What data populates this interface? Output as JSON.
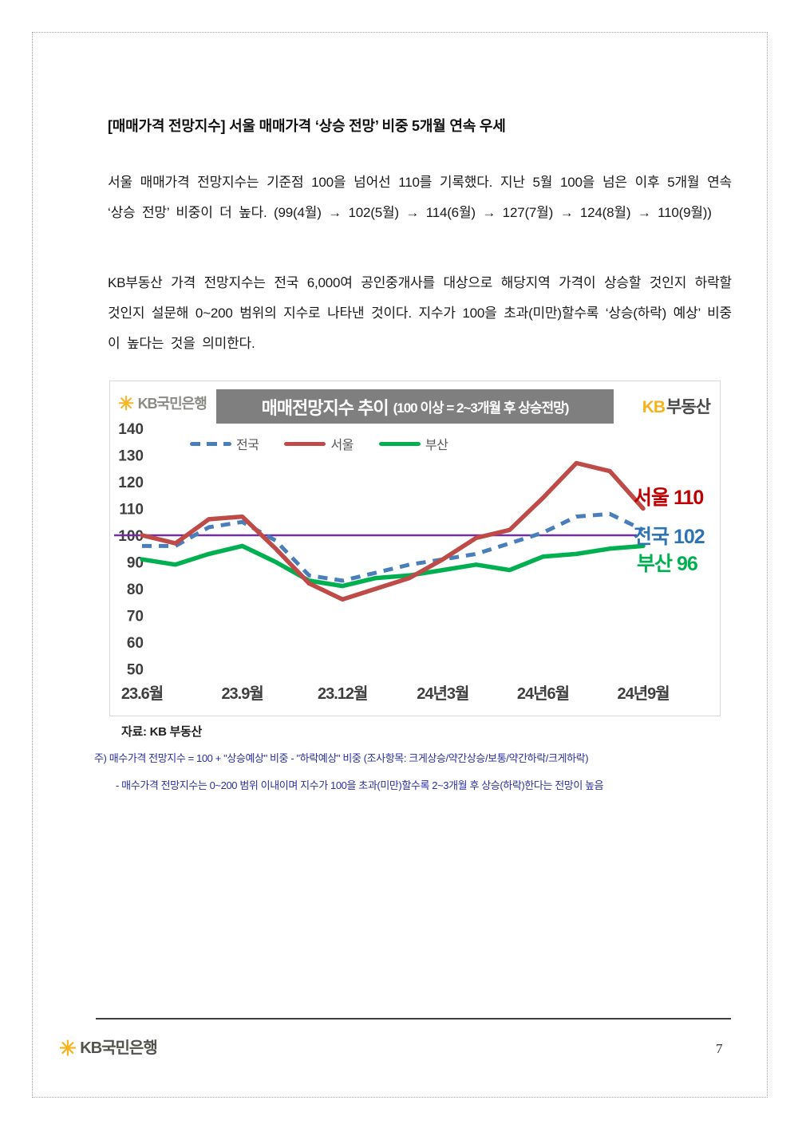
{
  "title": "[매매가격 전망지수] 서울 매매가격 ‘상승 전망’ 비중 5개월 연속 우세",
  "paragraphs": {
    "p1": "서울 매매가격 전망지수는 기준점 100을 넘어선 110를 기록했다. 지난 5월 100을 넘은 이후 5개월 연속 ‘상승 전망’ 비중이 더 높다. (99(4월) → 102(5월) → 114(6월) → 127(7월) → 124(8월) → 110(9월))",
    "p2": "KB부동산 가격 전망지수는 전국 6,000여 공인중개사를 대상으로 해당지역 가격이 상승할 것인지 하락할 것인지 설문해 0~200 범위의 지수로 나타낸 것이다. 지수가 100을 초과(미만)할수록 ‘상승(하락) 예상’ 비중이 높다는 것을 의미한다."
  },
  "chart": {
    "logo_left": {
      "symbol": "✳",
      "text": "KB국민은행"
    },
    "title_main": "매매전망지수 추이",
    "title_sub": "(100 이상 = 2~3개월 후 상승전망)",
    "brand_right": {
      "kb": "KB",
      "rest": "부동산"
    },
    "source": "자료: KB 부동산"
  },
  "chart_data": {
    "type": "line",
    "title": "매매전망지수 추이 (100 이상 = 2~3개월 후 상승전망)",
    "x_monthly": [
      "23.6",
      "23.7",
      "23.8",
      "23.9",
      "23.10",
      "23.11",
      "23.12",
      "24.1",
      "24.2",
      "24.3",
      "24.4",
      "24.5",
      "24.6",
      "24.7",
      "24.8",
      "24.9"
    ],
    "x_tick_labels": [
      "23.6월",
      "23.9월",
      "23.12월",
      "24년3월",
      "24년6월",
      "24년9월"
    ],
    "x_tick_indices": [
      0,
      3,
      6,
      9,
      12,
      15
    ],
    "ylim": [
      50,
      140
    ],
    "y_ticks": [
      140,
      130,
      120,
      110,
      100,
      90,
      80,
      70,
      60,
      50
    ],
    "baseline_value": 100,
    "baseline_color": "#7030a0",
    "grid": false,
    "legend_position": "top",
    "series": [
      {
        "id": "nationwide",
        "name": "전국",
        "color": "#4a7ebb",
        "style": "dashed",
        "values": [
          96,
          96,
          103,
          105,
          98,
          85,
          83,
          86,
          89,
          91,
          93,
          97,
          101,
          107,
          108,
          102
        ],
        "end_label": "전국 102",
        "end_label_color": "#2e74b5"
      },
      {
        "id": "seoul",
        "name": "서울",
        "color": "#be4b48",
        "style": "solid",
        "values": [
          100,
          97,
          106,
          107,
          95,
          82,
          76,
          80,
          84,
          91,
          99,
          102,
          114,
          127,
          124,
          110
        ],
        "end_label": "서울 110",
        "end_label_color": "#c00000"
      },
      {
        "id": "busan",
        "name": "부산",
        "color": "#00b050",
        "style": "solid",
        "values": [
          91,
          89,
          93,
          96,
          90,
          83,
          81,
          84,
          85,
          87,
          89,
          87,
          92,
          93,
          95,
          96
        ],
        "end_label": "부산 96",
        "end_label_color": "#00b050"
      }
    ]
  },
  "notes": {
    "line1": "주) 매수가격 전망지수 = 100 + \"상승예상\" 비중 - \"하락예상\" 비중 (조사항목: 크게상승/약간상승/보통/약간하락/크게하락)",
    "line2": "- 매수가격 전망지수는 0~200 범위 이내이며 지수가 100을 초과(미만)할수록 2~3개월 후 상승(하락)한다는 전망이 높음"
  },
  "footer": {
    "logo_symbol": "✳",
    "logo_text": "KB국민은행",
    "page_number": "7"
  }
}
